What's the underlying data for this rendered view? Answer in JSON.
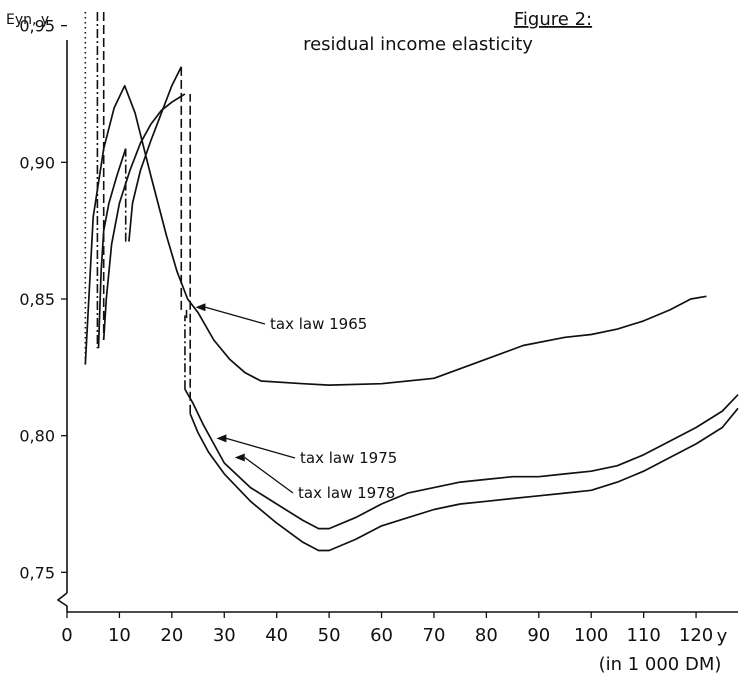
{
  "chart_data": {
    "type": "line",
    "title": "Figure 2:",
    "subtitle": "residual income elasticity",
    "ylabel": "Eyn, y",
    "xlabel": "y",
    "xunit": "(in 1 000 DM)",
    "xlim": [
      0,
      128
    ],
    "ylim": [
      0.745,
      0.955
    ],
    "xticks": [
      0,
      10,
      20,
      30,
      40,
      50,
      60,
      70,
      80,
      90,
      100,
      110,
      120
    ],
    "yticks": [
      0.75,
      0.8,
      0.85,
      0.9,
      0.95
    ],
    "ytick_labels": [
      "0,75",
      "0,80",
      "0,85",
      "0,90",
      "0,95"
    ],
    "grid": false,
    "series": [
      {
        "name": "tax law 1965",
        "label_point": [
          24.5,
          0.847
        ],
        "points": [
          [
            3.5,
            0.826
          ],
          [
            5,
            0.88
          ],
          [
            7,
            0.905
          ],
          [
            9,
            0.92
          ],
          [
            11,
            0.928
          ],
          [
            13,
            0.918
          ],
          [
            16,
            0.895
          ],
          [
            19,
            0.873
          ],
          [
            21,
            0.86
          ],
          [
            23,
            0.85
          ],
          [
            25,
            0.845
          ],
          [
            28,
            0.835
          ],
          [
            31,
            0.828
          ],
          [
            34,
            0.823
          ],
          [
            37,
            0.82
          ],
          [
            45,
            0.819
          ],
          [
            50,
            0.8185
          ],
          [
            60,
            0.819
          ],
          [
            70,
            0.821
          ],
          [
            80,
            0.828
          ],
          [
            87,
            0.833
          ],
          [
            95,
            0.836
          ],
          [
            100,
            0.837
          ],
          [
            105,
            0.839
          ],
          [
            110,
            0.842
          ],
          [
            115,
            0.846
          ],
          [
            119,
            0.85
          ],
          [
            122,
            0.851
          ]
        ]
      },
      {
        "name": "tax law 1975",
        "label_point": [
          28.5,
          0.799
        ],
        "segments": [
          [
            [
              6,
              0.832
            ],
            [
              6.5,
              0.86
            ],
            [
              7,
              0.875
            ],
            [
              8,
              0.885
            ],
            [
              9.5,
              0.895
            ],
            [
              11.2,
              0.905
            ]
          ],
          [
            [
              11.8,
              0.871
            ],
            [
              12.5,
              0.885
            ],
            [
              14,
              0.897
            ],
            [
              16,
              0.908
            ],
            [
              18,
              0.918
            ],
            [
              20,
              0.928
            ],
            [
              21.8,
              0.935
            ]
          ],
          [
            [
              22.5,
              0.817
            ],
            [
              24,
              0.812
            ],
            [
              26,
              0.804
            ],
            [
              28,
              0.797
            ],
            [
              30,
              0.79
            ],
            [
              35,
              0.781
            ],
            [
              40,
              0.775
            ],
            [
              45,
              0.769
            ],
            [
              48,
              0.766
            ],
            [
              50,
              0.766
            ],
            [
              55,
              0.77
            ],
            [
              60,
              0.775
            ],
            [
              65,
              0.779
            ],
            [
              70,
              0.781
            ],
            [
              75,
              0.783
            ],
            [
              80,
              0.784
            ],
            [
              85,
              0.785
            ],
            [
              90,
              0.785
            ],
            [
              95,
              0.786
            ],
            [
              100,
              0.787
            ],
            [
              105,
              0.789
            ],
            [
              110,
              0.793
            ],
            [
              115,
              0.798
            ],
            [
              120,
              0.803
            ],
            [
              125,
              0.809
            ],
            [
              128,
              0.815
            ]
          ]
        ]
      },
      {
        "name": "tax law 1978",
        "label_point": [
          32,
          0.792
        ],
        "segments": [
          [
            [
              7,
              0.835
            ],
            [
              7.5,
              0.85
            ],
            [
              8.5,
              0.87
            ],
            [
              10,
              0.885
            ],
            [
              12,
              0.897
            ],
            [
              14,
              0.907
            ],
            [
              16,
              0.914
            ],
            [
              18,
              0.919
            ],
            [
              20,
              0.922
            ],
            [
              22.5,
              0.925
            ]
          ],
          [
            [
              23.5,
              0.808
            ],
            [
              25,
              0.801
            ],
            [
              27,
              0.794
            ],
            [
              30,
              0.786
            ],
            [
              35,
              0.776
            ],
            [
              40,
              0.768
            ],
            [
              45,
              0.761
            ],
            [
              48,
              0.758
            ],
            [
              50,
              0.758
            ],
            [
              55,
              0.762
            ],
            [
              60,
              0.767
            ],
            [
              65,
              0.77
            ],
            [
              70,
              0.773
            ],
            [
              75,
              0.775
            ],
            [
              80,
              0.776
            ],
            [
              85,
              0.777
            ],
            [
              90,
              0.778
            ],
            [
              95,
              0.779
            ],
            [
              100,
              0.78
            ],
            [
              105,
              0.783
            ],
            [
              110,
              0.787
            ],
            [
              115,
              0.792
            ],
            [
              120,
              0.797
            ],
            [
              125,
              0.803
            ],
            [
              128,
              0.81
            ]
          ]
        ]
      }
    ],
    "discontinuities": [
      {
        "style": "dotted",
        "x": 3.5,
        "y_from": 0.826,
        "y_to": 0.955
      },
      {
        "style": "dash-dot",
        "x": 5.8,
        "y_from": 0.832,
        "y_to": 0.955
      },
      {
        "style": "dashed",
        "x": 7,
        "y_from": 0.835,
        "y_to": 0.955
      },
      {
        "style": "dashed",
        "x": 21.8,
        "y_from": 0.935,
        "y_to": 0.846
      },
      {
        "style": "dashed",
        "x": 22.8,
        "y_from": 0.846,
        "y_to": 0.843
      },
      {
        "style": "dash-dot",
        "x": 22.5,
        "y_from": 0.844,
        "y_to": 0.817
      },
      {
        "style": "dash-dot",
        "x": 11.2,
        "y_from": 0.905,
        "y_to": 0.871
      },
      {
        "style": "dashed",
        "x": 23.5,
        "y_from": 0.925,
        "y_to": 0.808
      }
    ]
  }
}
